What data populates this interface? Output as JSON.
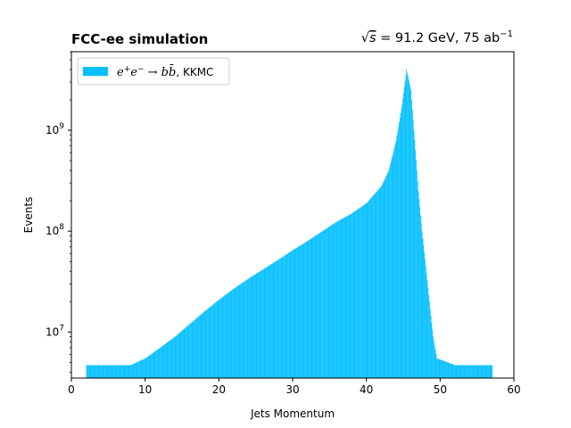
{
  "chart_data": {
    "type": "bar",
    "title_left": "FCC-ee simulation",
    "title_right": {
      "sqrt_symbol": "√",
      "sqrt_arg": "s",
      "equals_text": " = 91.2 GeV, 75 ab",
      "exponent": "−1"
    },
    "xlabel": "Jets Momentum",
    "ylabel": "Events",
    "xlim": [
      0,
      60
    ],
    "ylim": [
      3500000,
      6000000000
    ],
    "yscale": "log",
    "x_ticks": [
      "0",
      "10",
      "20",
      "30",
      "40",
      "50",
      "60"
    ],
    "y_ticks": [
      {
        "base": "10",
        "exp": "7",
        "value": 10000000
      },
      {
        "base": "10",
        "exp": "8",
        "value": 100000000
      },
      {
        "base": "10",
        "exp": "9",
        "value": 1000000000
      }
    ],
    "legend": {
      "placement": "top-left",
      "label_parts": {
        "e1": "e",
        "sup1": "+",
        "e2": "e",
        "sup2": "−",
        "arrow": " → ",
        "b1": "b",
        "b2": "b̄",
        "rest": ", KKMC"
      }
    },
    "color": "#00BFFF",
    "series": [
      {
        "values": [
          {
            "x": 2.0,
            "y": 4700000
          },
          {
            "x": 5.0,
            "y": 4700000
          },
          {
            "x": 8.0,
            "y": 4700000
          },
          {
            "x": 10.0,
            "y": 5500000
          },
          {
            "x": 12.0,
            "y": 7000000
          },
          {
            "x": 14.0,
            "y": 9000000
          },
          {
            "x": 16.0,
            "y": 12000000
          },
          {
            "x": 18.0,
            "y": 16000000
          },
          {
            "x": 20.0,
            "y": 21000000
          },
          {
            "x": 22.0,
            "y": 27000000
          },
          {
            "x": 24.0,
            "y": 34000000
          },
          {
            "x": 26.0,
            "y": 42000000
          },
          {
            "x": 28.0,
            "y": 52000000
          },
          {
            "x": 30.0,
            "y": 65000000
          },
          {
            "x": 32.0,
            "y": 80000000
          },
          {
            "x": 34.0,
            "y": 100000000
          },
          {
            "x": 36.0,
            "y": 125000000
          },
          {
            "x": 38.0,
            "y": 150000000
          },
          {
            "x": 40.0,
            "y": 190000000
          },
          {
            "x": 42.0,
            "y": 280000000
          },
          {
            "x": 43.0,
            "y": 400000000
          },
          {
            "x": 44.0,
            "y": 800000000
          },
          {
            "x": 44.8,
            "y": 1800000000
          },
          {
            "x": 45.4,
            "y": 4000000000
          },
          {
            "x": 46.0,
            "y": 2500000000
          },
          {
            "x": 46.5,
            "y": 800000000
          },
          {
            "x": 47.0,
            "y": 250000000
          },
          {
            "x": 47.5,
            "y": 100000000
          },
          {
            "x": 48.0,
            "y": 45000000
          },
          {
            "x": 48.5,
            "y": 20000000
          },
          {
            "x": 49.0,
            "y": 9000000
          },
          {
            "x": 49.5,
            "y": 5500000
          },
          {
            "x": 52.0,
            "y": 4700000
          },
          {
            "x": 57.0,
            "y": 4700000
          }
        ]
      }
    ]
  }
}
